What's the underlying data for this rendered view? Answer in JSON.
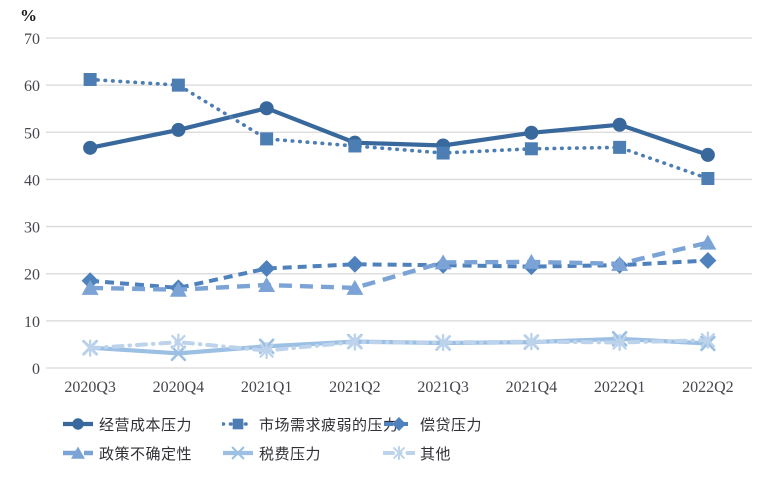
{
  "chart_data": {
    "type": "line",
    "title": "",
    "unit_label": "%",
    "xlabel": "",
    "ylabel": "%",
    "ylim": [
      0,
      70
    ],
    "ytick_step": 10,
    "grid": "horizontal-only",
    "legend_position": "bottom",
    "categories": [
      "2020Q3",
      "2020Q4",
      "2021Q1",
      "2021Q2",
      "2021Q3",
      "2021Q4",
      "2022Q1",
      "2022Q2"
    ],
    "series": [
      {
        "name": "经营成本压力",
        "marker": "circle",
        "line": "solid",
        "color": "#38689C",
        "values": [
          46.7,
          50.5,
          55.1,
          47.8,
          47.2,
          49.9,
          51.6,
          45.2
        ]
      },
      {
        "name": "市场需求疲弱的压力",
        "marker": "square",
        "line": "dotted",
        "color": "#4C7DB3",
        "values": [
          61.2,
          60.0,
          48.6,
          47.1,
          45.6,
          46.5,
          46.8,
          40.2
        ]
      },
      {
        "name": "偿贷压力",
        "marker": "diamond",
        "line": "dashed",
        "color": "#4F81BD",
        "values": [
          18.5,
          17.0,
          21.1,
          22.0,
          21.8,
          21.5,
          21.8,
          22.8
        ]
      },
      {
        "name": "政策不确定性",
        "marker": "triangle",
        "line": "long-dash",
        "color": "#7BA3D6",
        "values": [
          17.0,
          16.6,
          17.6,
          17.0,
          22.4,
          22.5,
          22.1,
          26.6
        ]
      },
      {
        "name": "税费压力",
        "marker": "x",
        "line": "solid",
        "color": "#9CBFE4",
        "values": [
          4.3,
          3.1,
          4.6,
          5.6,
          5.3,
          5.5,
          6.2,
          5.2
        ]
      },
      {
        "name": "其他",
        "marker": "asterisk",
        "line": "dash-dot",
        "color": "#BDD3EC",
        "values": [
          4.2,
          5.5,
          3.7,
          5.5,
          5.4,
          5.6,
          5.4,
          5.9
        ]
      }
    ]
  },
  "axis_style": {
    "gridline_color": "#d9d9d9",
    "tick_label_color": "#46464e"
  }
}
